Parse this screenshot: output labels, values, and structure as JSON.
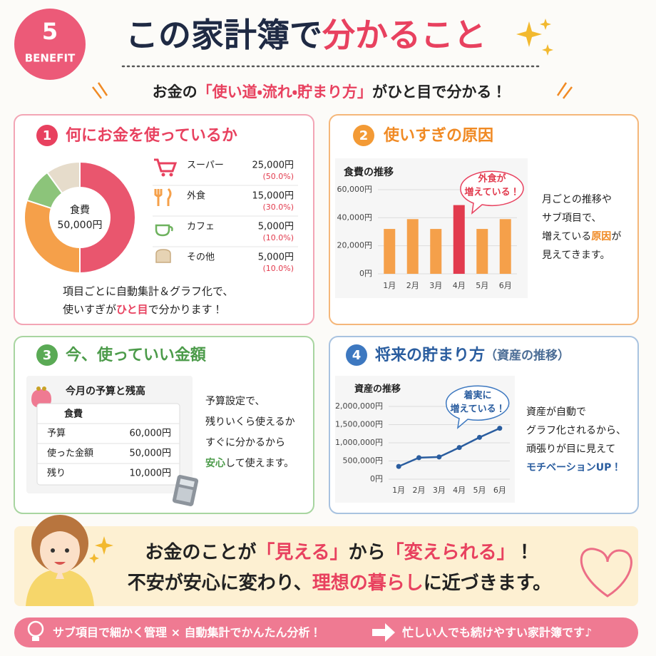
{
  "badge": {
    "number": "5",
    "label": "BENEFIT"
  },
  "header": {
    "title": "この家計簿で",
    "title_highlight": "分かること",
    "subtitle": [
      "お金の",
      "「使い道・流れ・貯まり方」",
      "がひと目で分かる！"
    ]
  },
  "panels": [
    {
      "number": "1",
      "title": "何にお金を使っているか",
      "chart_data": {
        "type": "pie",
        "center_label": "食費",
        "center_value": "50,000円",
        "categories": [
          "スーパー",
          "外食",
          "カフェ",
          "その他"
        ],
        "amounts": [
          "25,000円",
          "15,000円",
          "5,000円",
          "5,000円"
        ],
        "values": [
          50,
          30,
          10,
          10
        ],
        "value_labels": [
          "(50.0%)",
          "(30.0%)",
          "(10.0%)",
          "(10.0%)"
        ],
        "colors": [
          "#e9566e",
          "#f5a04a",
          "#8cc47a",
          "#e6dccb"
        ]
      },
      "caption": [
        [
          "項目ごとに自動集計＆グラフ化で、"
        ],
        [
          "使いすぎが",
          "ひと目",
          "で分かります！"
        ]
      ]
    },
    {
      "number": "2",
      "title": "使いすぎの原因",
      "chart_data": {
        "type": "bar",
        "title": "食費の推移",
        "categories": [
          "1月",
          "2月",
          "3月",
          "4月",
          "5月",
          "6月"
        ],
        "values": [
          32000,
          39000,
          32000,
          49000,
          32000,
          39000
        ],
        "colors": [
          "#f5a04a",
          "#f5a04a",
          "#f5a04a",
          "#e23b4e",
          "#f5a04a",
          "#f5a04a"
        ],
        "ylim": [
          0,
          60000
        ],
        "yticks": [
          {
            "value": 0,
            "label": "0円"
          },
          {
            "value": 20000,
            "label": "20,000円"
          },
          {
            "value": 40000,
            "label": "40,000円"
          },
          {
            "value": 60000,
            "label": "60,000円"
          }
        ],
        "grid": true,
        "annotation": [
          "外食が",
          "増えている！"
        ]
      },
      "description": [
        [
          "月ごとの推移や"
        ],
        [
          "サブ項目で、"
        ],
        [
          "増えている",
          "原因",
          "が"
        ],
        [
          "見えてきます。"
        ]
      ]
    },
    {
      "number": "3",
      "title": "今、使っていい金額",
      "budget": {
        "title": "今月の予算と残高",
        "category": "食費",
        "rows": [
          [
            "予算",
            "60,000円"
          ],
          [
            "使った金額",
            "50,000円"
          ],
          [
            "残り",
            "10,000円"
          ]
        ]
      },
      "description": [
        [
          "予算設定で、"
        ],
        [
          "残りいくら使えるか"
        ],
        [
          "すぐに分かるから"
        ],
        [
          "安心",
          "して使えます。"
        ]
      ]
    },
    {
      "number": "4",
      "title": "将来の貯まり方",
      "title_note": "（資産の推移）",
      "chart_data": {
        "type": "line",
        "title": "資産の推移",
        "categories": [
          "1月",
          "2月",
          "3月",
          "4月",
          "5月",
          "6月"
        ],
        "values": [
          350000,
          590000,
          610000,
          870000,
          1150000,
          1400000
        ],
        "color": "#2a5d9f",
        "ylim": [
          0,
          2000000
        ],
        "yticks": [
          {
            "value": 0,
            "label": "0円"
          },
          {
            "value": 500000,
            "label": "500,000円"
          },
          {
            "value": 1000000,
            "label": "1,000,000円"
          },
          {
            "value": 1500000,
            "label": "1,500,000円"
          },
          {
            "value": 2000000,
            "label": "2,000,000円"
          }
        ],
        "grid": true,
        "annotation": [
          "着実に",
          "増えている！"
        ]
      },
      "description": [
        [
          "資産が自動で"
        ],
        [
          "グラフ化されるから、"
        ],
        [
          "頑張りが目に見えて"
        ],
        [
          "モチベーションUP！"
        ]
      ]
    }
  ],
  "banner": {
    "line1": [
      "お金のことが",
      "「見える」",
      "から",
      "「変えられる」",
      "！"
    ],
    "line2": [
      "不安が安心に変わり、",
      "理想の暮らし",
      "に近づきます。"
    ]
  },
  "footer": [
    "サブ項目で細かく管理 × 自動集計でかんたん分析！",
    "忙しい人でも続けやすい家計簿です♪"
  ]
}
